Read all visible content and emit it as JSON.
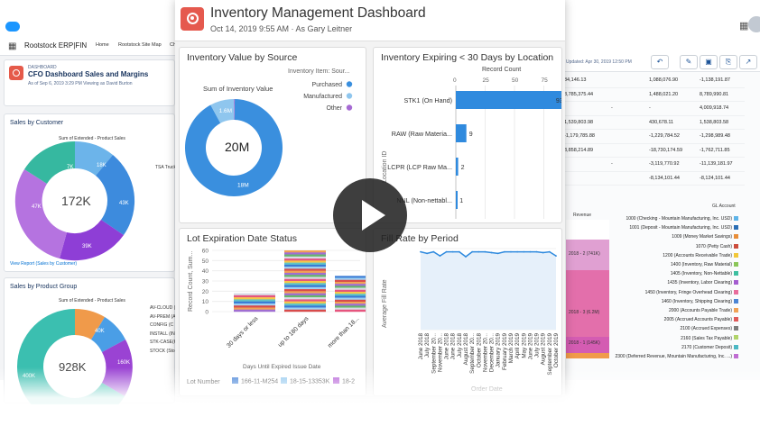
{
  "back_left": {
    "app_name": "Rootstock ERP|FIN",
    "nav": [
      "Home",
      "Rootstock Site Map",
      "Ch"
    ],
    "dashboard_kicker": "DASHBOARD",
    "dashboard_title": "CFO Dashboard Sales and Margins",
    "dashboard_sub": "As of Sep 6, 2019 3:29 PM Viewing as David Burton",
    "card1": {
      "title": "Sales by Customer",
      "chart_sub": "Sum of Extended - Product Sales",
      "center": "172K",
      "side_label": "TSA Truck",
      "link": "View Report (Sales by Customer)"
    },
    "card2": {
      "title": "Sales by Product Group",
      "chart_sub": "Sum of Extended - Product Sales",
      "center": "928K",
      "side_labels": [
        "AV-CLOUD (",
        "AV-PREM (A",
        "CONFIG (C",
        "INSTALL (IN",
        "STK-CASE(K",
        "STOCK (Stoc"
      ]
    }
  },
  "back_right": {
    "updated": "Updated: Apr 30, 2019 12:50 PM",
    "rows": [
      [
        "84,146.13",
        "",
        "1,088,076.90",
        "-1,138,191.87"
      ],
      [
        "8,785,375.44",
        "",
        "1,488,021.20",
        "8,789,990.81"
      ],
      [
        "",
        "-",
        "-",
        "4,009,918.74"
      ],
      [
        "1,539,803.98",
        "",
        "430,678.11",
        "1,538,803.58"
      ],
      [
        "-1,179,785.88",
        "",
        "-1,229,784.52",
        "-1,298,989.48"
      ],
      [
        "3,858,214.89",
        "",
        "-18,730,174.59",
        "-1,762,711.85"
      ],
      [
        "",
        "-",
        "-3,119,770.92",
        "-11,139,181.97"
      ],
      [
        "",
        "",
        "-8,134,101.44",
        "-8,124,101.44"
      ]
    ],
    "revenue_label": "Revenue",
    "gl_title": "GL Account",
    "stack_labels": [
      "2018 - 2 (741K)",
      "2018 - 3 (6.2M)",
      "2018 - 1 (145K)"
    ],
    "gl_accounts": [
      "1000 (Checking - Mountain Manufacturing, Inc. USD)",
      "1001 (Deposit - Mountain Manufacturing, Inc. USD)",
      "1009 (Money Market Savings)",
      "1070 (Petty Cash)",
      "1200 (Accounts Receivable Trade)",
      "1400 (Inventory, Raw Material)",
      "1405 (Inventory, Non-Nettable)",
      "1435 (Inventory, Labor Clearing)",
      "1450 (Inventory, Fringe Overhead Clearing)",
      "1460 (Inventory, Shipping Clearing)",
      "2000 (Accounts Payable Trade)",
      "2005 (Accrued Accounts Payable)",
      "2100 (Accrued Expenses)",
      "2160 (Sales Tax Payable)",
      "2170 (Customer Deposit)",
      "2300 (Deferred Revenue, Mountain Manufacturing, Inc. ...)"
    ],
    "gl_colors": [
      "#5eb4e8",
      "#2a6eb5",
      "#e98e3a",
      "#cc4c3c",
      "#f2c83a",
      "#8bc659",
      "#3dbfa0",
      "#a45dd0",
      "#e86d9c",
      "#4c85d4",
      "#f0a256",
      "#df5a5a",
      "#7d7d7d",
      "#b1d46a",
      "#4cb8c4",
      "#c06dd2"
    ]
  },
  "main": {
    "title": "Inventory Management Dashboard",
    "subtitle": "Oct 14, 2019 9:55 AM  ·  As Gary Leitner",
    "cards": {
      "value_by_source": {
        "title": "Inventory Value by Source",
        "legend_title": "Inventory Item: Sour...",
        "sum_label": "Sum of Inventory Value",
        "center": "20M"
      },
      "expiring": {
        "title": "Inventory Expiring < 30 Days by Location"
      },
      "lot_expiration": {
        "title": "Lot Expiration Date Status"
      },
      "fill_rate": {
        "title": "Fill Rate by Period"
      }
    }
  },
  "play_button": {
    "icon": "play-icon"
  },
  "chart_data": [
    {
      "type": "pie",
      "title": "Inventory Value by Source",
      "legend_title": "Inventory Item: Sour...",
      "categories": [
        "Purchased",
        "Manufactured",
        "Other"
      ],
      "values": [
        18.4,
        1.6,
        0.05
      ],
      "value_labels": [
        "18M",
        "1.6M",
        ""
      ],
      "colors": [
        "#3a8fde",
        "#8fc6ee",
        "#a66ad3"
      ],
      "center_label": "20M",
      "measure": "Sum of Inventory Value"
    },
    {
      "type": "bar",
      "title": "Inventory Expiring < 30 Days by Location",
      "orientation": "horizontal",
      "xlabel": "Record Count",
      "ylabel": "Location ID",
      "categories": [
        "STK1 (On Hand)",
        "RAW (Raw Materia...",
        "LCPR (LCP Raw Ma...",
        "NNL (Non-nettabl..."
      ],
      "values": [
        93,
        9,
        2,
        1
      ],
      "x_ticks": [
        0,
        25,
        50,
        75
      ],
      "xlim": [
        0,
        100
      ],
      "color": "#2f8ade"
    },
    {
      "type": "bar",
      "title": "Lot Expiration Date Status",
      "stacked": true,
      "xlabel": "Days Until Expired Issue Date",
      "ylabel": "Record Count, Sum...",
      "categories": [
        "30 days or less",
        "up to 180 days",
        "more than 18..."
      ],
      "values": [
        18,
        60,
        35
      ],
      "ylim": [
        0,
        60
      ],
      "y_ticks": [
        0,
        10,
        20,
        30,
        40,
        50,
        60
      ],
      "legend_title": "Lot Number",
      "legend": [
        "166-11-M254",
        "18-15-13353K",
        "18-2"
      ],
      "legend_colors": [
        "#3a7bd5",
        "#8fc6ee",
        "#b35ad6"
      ],
      "stack_colors": [
        "#d8dbe6",
        "#f0a255",
        "#3a7bd5",
        "#e6557e",
        "#a06ed2",
        "#9fd1f3",
        "#f5c748",
        "#65b56c",
        "#d84b4b",
        "#5fc3c8"
      ]
    },
    {
      "type": "line",
      "title": "Fill Rate by Period",
      "xlabel": "Order Date",
      "ylabel": "Average Fill Rate",
      "x": [
        "June 2018",
        "July 2018",
        "September 20...",
        "November 20...",
        "June 2018",
        "June 2018",
        "July 2018",
        "August 2018",
        "September 20...",
        "October 2018",
        "November 20...",
        "December 20...",
        "January 2019",
        "February 2019",
        "March 2019",
        "April 2019",
        "May 2019",
        "June 2019",
        "July 2019",
        "August 2019",
        "September 2019",
        "October 2019"
      ],
      "values": [
        96,
        94,
        96,
        91,
        96,
        96,
        96,
        90,
        96,
        96,
        96,
        95,
        94,
        96,
        96,
        96,
        96,
        96,
        96,
        95,
        96,
        91
      ],
      "ylim": [
        0,
        100
      ],
      "color": "#2f8ade",
      "fill": "#e6f0fa"
    }
  ]
}
